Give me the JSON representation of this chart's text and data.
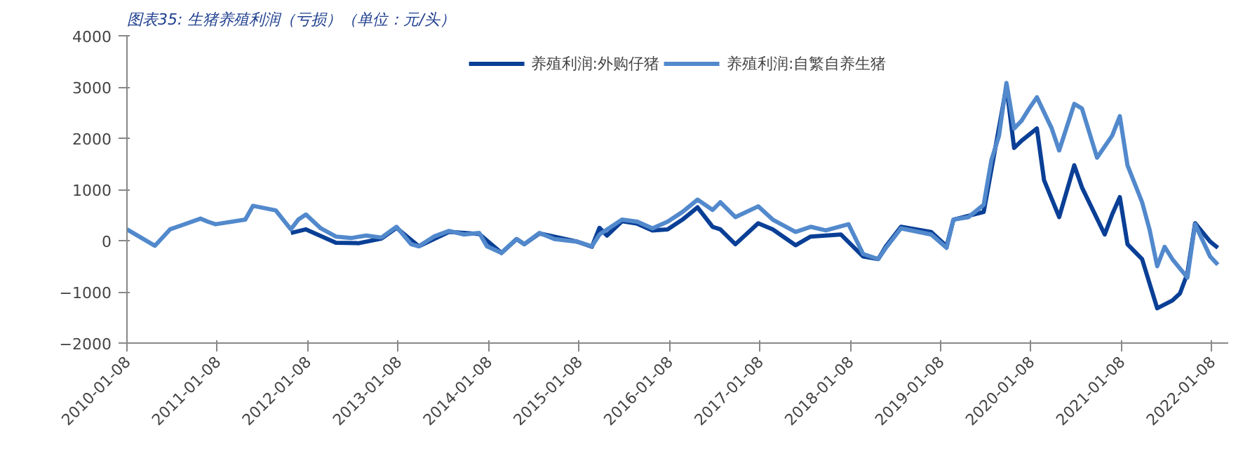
{
  "chart_data": {
    "type": "line",
    "title": "图表35: 生猪养殖利润（亏损）（单位：元/头）",
    "xlim": [
      "2010-01-08",
      "2022-03-15"
    ],
    "xticks": [
      "2010-01-08",
      "2011-01-08",
      "2012-01-08",
      "2013-01-08",
      "2014-01-08",
      "2015-01-08",
      "2016-01-08",
      "2017-01-08",
      "2018-01-08",
      "2019-01-08",
      "2020-01-08",
      "2021-01-08",
      "2022-01-08"
    ],
    "ylim": [
      -2000,
      4000
    ],
    "yticks": [
      -2000,
      -1000,
      0,
      1000,
      2000,
      3000,
      4000
    ],
    "grid": false,
    "legend": "top",
    "series": [
      {
        "name": "养殖利润:外购仔猪",
        "color": "#0a3f96",
        "x": [
          "2011-11",
          "2012-01",
          "2012-05",
          "2012-08",
          "2012-11",
          "2013-01",
          "2013-04",
          "2013-08",
          "2013-12",
          "2014-03",
          "2014-05",
          "2014-06",
          "2014-08",
          "2015-01",
          "2015-03",
          "2015-04",
          "2015-05",
          "2015-07",
          "2015-09",
          "2015-11",
          "2016-01",
          "2016-03",
          "2016-05",
          "2016-07",
          "2016-08",
          "2016-10",
          "2017-01",
          "2017-03",
          "2017-06",
          "2017-08",
          "2017-12",
          "2018-03",
          "2018-05",
          "2018-06",
          "2018-08",
          "2018-12",
          "2019-02",
          "2019-03",
          "2019-07",
          "2019-08",
          "2019-10",
          "2019-11",
          "2019-12",
          "2020-02",
          "2020-03",
          "2020-05",
          "2020-07",
          "2020-08",
          "2020-11",
          "2020-12",
          "2021-01",
          "2021-02",
          "2021-04",
          "2021-06",
          "2021-08",
          "2021-09",
          "2021-10",
          "2021-11",
          "2022-01",
          "2022-02"
        ],
        "values": [
          150,
          220,
          -40,
          -50,
          40,
          250,
          -110,
          170,
          130,
          -240,
          30,
          -70,
          140,
          -20,
          -120,
          250,
          100,
          380,
          330,
          200,
          220,
          410,
          650,
          270,
          220,
          -70,
          340,
          220,
          -90,
          80,
          120,
          -310,
          -360,
          -110,
          270,
          170,
          -110,
          410,
          560,
          1380,
          3010,
          1810,
          1950,
          2190,
          1180,
          460,
          1470,
          1040,
          120,
          510,
          850,
          -70,
          -360,
          -1320,
          -1170,
          -1030,
          -640,
          340,
          -20,
          -140
        ]
      },
      {
        "name": "养殖利润:自繁自养生猪",
        "color": "#5289cc",
        "x": [
          "2010-01-08",
          "2010-05",
          "2010-07",
          "2010-11",
          "2010-12",
          "2011-01",
          "2011-05",
          "2011-06",
          "2011-09",
          "2011-11",
          "2011-12",
          "2012-01",
          "2012-03",
          "2012-05",
          "2012-07",
          "2012-09",
          "2012-11",
          "2013-01",
          "2013-03",
          "2013-04",
          "2013-06",
          "2013-08",
          "2013-10",
          "2013-12",
          "2014-01",
          "2014-03",
          "2014-05",
          "2014-06",
          "2014-08",
          "2014-10",
          "2015-01",
          "2015-03",
          "2015-04",
          "2015-07",
          "2015-09",
          "2015-11",
          "2016-01",
          "2016-03",
          "2016-05",
          "2016-07",
          "2016-08",
          "2016-10",
          "2017-01",
          "2017-03",
          "2017-06",
          "2017-08",
          "2017-10",
          "2018-01",
          "2018-03",
          "2018-05",
          "2018-06",
          "2018-08",
          "2018-12",
          "2019-02",
          "2019-03",
          "2019-05",
          "2019-07",
          "2019-08",
          "2019-09",
          "2019-10",
          "2019-11",
          "2019-12",
          "2020-01",
          "2020-02",
          "2020-04",
          "2020-05",
          "2020-07",
          "2020-08",
          "2020-10",
          "2020-12",
          "2021-01",
          "2021-02",
          "2021-04",
          "2021-05",
          "2021-06",
          "2021-07",
          "2021-08",
          "2021-10",
          "2021-11",
          "2022-01",
          "2022-02"
        ],
        "values": [
          220,
          -100,
          220,
          430,
          370,
          320,
          410,
          680,
          590,
          220,
          410,
          510,
          240,
          80,
          50,
          100,
          60,
          270,
          -70,
          -110,
          80,
          190,
          120,
          150,
          -110,
          -240,
          30,
          -70,
          150,
          30,
          -20,
          -110,
          120,
          410,
          370,
          240,
          370,
          560,
          800,
          600,
          750,
          460,
          670,
          410,
          170,
          270,
          200,
          320,
          -260,
          -360,
          -140,
          240,
          120,
          -140,
          410,
          460,
          700,
          1570,
          2050,
          3080,
          2190,
          2340,
          2580,
          2800,
          2190,
          1760,
          2670,
          2580,
          1620,
          2050,
          2430,
          1470,
          750,
          220,
          -500,
          -120,
          -360,
          -720,
          320,
          -310,
          -470
        ]
      }
    ]
  }
}
